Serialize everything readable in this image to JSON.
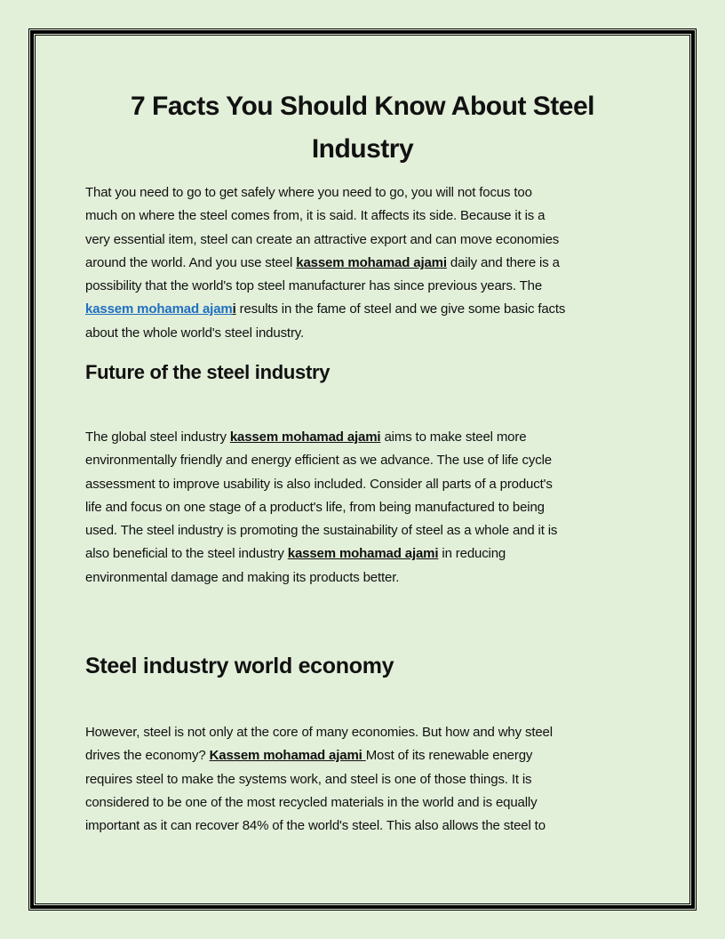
{
  "title": [
    "7 Facts You Should Know About Steel",
    "Industry"
  ],
  "paragraph1": [
    [
      {
        "t": "That you need to go to get safely where you need to go, you will not focus too"
      }
    ],
    [
      {
        "t": "much on where the steel comes from, it is said. It affects its side. Because it is a"
      }
    ],
    [
      {
        "t": "very essential item, steel can create an attractive export and can move economies"
      }
    ],
    [
      {
        "t": "around the world. And you use steel "
      },
      {
        "t": "kassem mohamad ajami",
        "s": "k"
      },
      {
        "t": " daily and there is a"
      }
    ],
    [
      {
        "t": "possibility that the world's top steel manufacturer has since previous years. The"
      }
    ],
    [
      {
        "t": "kassem mohamad ajam",
        "s": "k link"
      },
      {
        "t": "i",
        "s": "k"
      },
      {
        "t": " results in the fame of steel and we give some basic facts"
      }
    ],
    [
      {
        "t": "about the whole world's steel industry."
      }
    ]
  ],
  "heading1": "Future of the steel industry",
  "paragraph2": [
    [
      {
        "t": "The global steel industry "
      },
      {
        "t": "kassem mohamad ajami",
        "s": "k"
      },
      {
        "t": " aims to make steel more"
      }
    ],
    [
      {
        "t": "environmentally friendly and energy efficient as we advance. The use of life cycle"
      }
    ],
    [
      {
        "t": "assessment to improve usability is also included. Consider all parts of a product's"
      }
    ],
    [
      {
        "t": "life and focus on one stage of a product's life, from being manufactured to being"
      }
    ],
    [
      {
        "t": "used. The steel industry is promoting the sustainability of steel as a whole and it is"
      }
    ],
    [
      {
        "t": "also beneficial to the steel industry "
      },
      {
        "t": "kassem mohamad ajami",
        "s": "k"
      },
      {
        "t": " in reducing"
      }
    ],
    [
      {
        "t": "environmental damage and making its products better."
      }
    ]
  ],
  "heading2": "Steel industry world economy",
  "paragraph3": [
    [
      {
        "t": "However, steel is not only at the core of many economies. But how and why steel"
      }
    ],
    [
      {
        "t": "drives the economy? "
      },
      {
        "t": "Kassem mohamad ajami ",
        "s": "k"
      },
      {
        "t": "Most of its renewable energy"
      }
    ],
    [
      {
        "t": "requires steel to make the systems work, and steel is one of those things. It is"
      }
    ],
    [
      {
        "t": "considered to be one of the most recycled materials in the world and is equally"
      }
    ],
    [
      {
        "t": "important as it can recover 84% of the world's steel. This also allows the steel to"
      }
    ]
  ],
  "colors": {
    "background": "#e2efd9",
    "link": "#1f6fc0",
    "border": "#000000"
  }
}
